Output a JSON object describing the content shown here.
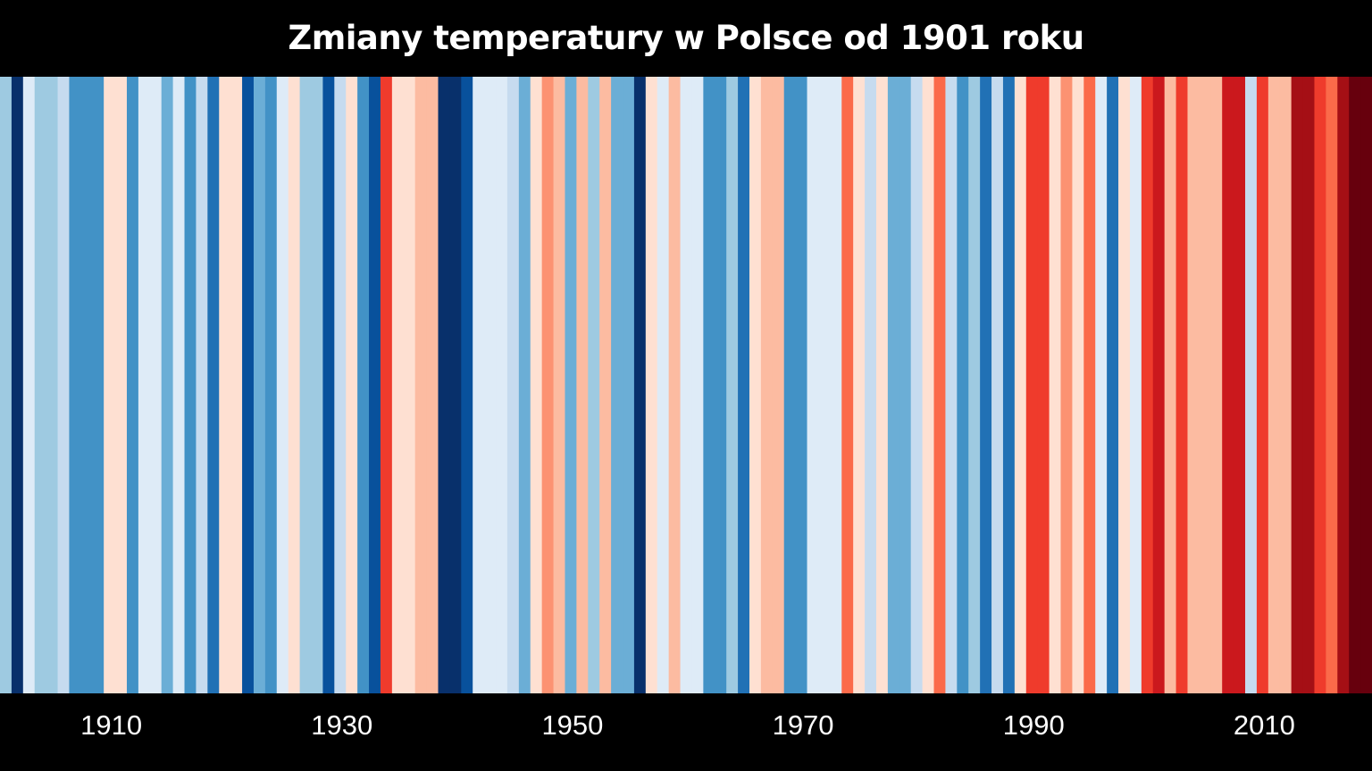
{
  "chart_data": {
    "type": "heatmap",
    "title": "Zmiany temperatury w Polsce od 1901 roku",
    "x_start_year": 1901,
    "x_end_year": 2019,
    "x_ticks": [
      "1910",
      "1930",
      "1950",
      "1970",
      "1990",
      "2010"
    ],
    "x_tick_years": [
      1910,
      1930,
      1950,
      1970,
      1990,
      2010
    ],
    "color_scale": [
      "#08306b",
      "#08519c",
      "#2171b5",
      "#4292c6",
      "#6baed6",
      "#9ecae1",
      "#c6dbef",
      "#deebf7",
      "#fee0d2",
      "#fcbba1",
      "#fc9272",
      "#fb6a4a",
      "#ef3b2c",
      "#cb181d",
      "#a50f15",
      "#67000d"
    ],
    "years": [
      1901,
      1902,
      1903,
      1904,
      1905,
      1906,
      1907,
      1908,
      1909,
      1910,
      1911,
      1912,
      1913,
      1914,
      1915,
      1916,
      1917,
      1918,
      1919,
      1920,
      1921,
      1922,
      1923,
      1924,
      1925,
      1926,
      1927,
      1928,
      1929,
      1930,
      1931,
      1932,
      1933,
      1934,
      1935,
      1936,
      1937,
      1938,
      1939,
      1940,
      1941,
      1942,
      1943,
      1944,
      1945,
      1946,
      1947,
      1948,
      1949,
      1950,
      1951,
      1952,
      1953,
      1954,
      1955,
      1956,
      1957,
      1958,
      1959,
      1960,
      1961,
      1962,
      1963,
      1964,
      1965,
      1966,
      1967,
      1968,
      1969,
      1970,
      1971,
      1972,
      1973,
      1974,
      1975,
      1976,
      1977,
      1978,
      1979,
      1980,
      1981,
      1982,
      1983,
      1984,
      1985,
      1986,
      1987,
      1988,
      1989,
      1990,
      1991,
      1992,
      1993,
      1994,
      1995,
      1996,
      1997,
      1998,
      1999,
      2000,
      2001,
      2002,
      2003,
      2004,
      2005,
      2006,
      2007,
      2008,
      2009,
      2010,
      2011,
      2012,
      2013,
      2014,
      2015,
      2016,
      2017,
      2018,
      2019
    ],
    "colors": [
      "#9ecae1",
      "#08306b",
      "#deebf7",
      "#9ecae1",
      "#9ecae1",
      "#c6dbef",
      "#4292c6",
      "#4292c6",
      "#4292c6",
      "#fee0d2",
      "#fee0d2",
      "#4292c6",
      "#deebf7",
      "#deebf7",
      "#6baed6",
      "#deebf7",
      "#4292c6",
      "#c6dbef",
      "#2171b5",
      "#fee0d2",
      "#fee0d2",
      "#08519c",
      "#6baed6",
      "#4292c6",
      "#deebf7",
      "#fee0d2",
      "#9ecae1",
      "#9ecae1",
      "#08519c",
      "#c6dbef",
      "#fee0d2",
      "#4292c6",
      "#08519c",
      "#ef3b2c",
      "#fee0d2",
      "#fee0d2",
      "#fcbba1",
      "#fcbba1",
      "#08306b",
      "#08306b",
      "#08519c",
      "#deebf7",
      "#deebf7",
      "#deebf7",
      "#c6dbef",
      "#6baed6",
      "#fee0d2",
      "#fc9272",
      "#fcbba1",
      "#6baed6",
      "#fcbba1",
      "#9ecae1",
      "#fcbba1",
      "#6baed6",
      "#6baed6",
      "#08306b",
      "#fee0d2",
      "#deebf7",
      "#fcbba1",
      "#deebf7",
      "#deebf7",
      "#4292c6",
      "#4292c6",
      "#9ecae1",
      "#2171b5",
      "#fee0d2",
      "#fcbba1",
      "#fcbba1",
      "#4292c6",
      "#4292c6",
      "#deebf7",
      "#deebf7",
      "#deebf7",
      "#fb6a4a",
      "#fee0d2",
      "#c6dbef",
      "#fee0d2",
      "#6baed6",
      "#6baed6",
      "#c6dbef",
      "#fee0d2",
      "#fb6a4a",
      "#c6dbef",
      "#4292c6",
      "#9ecae1",
      "#2171b5",
      "#c6dbef",
      "#2171b5",
      "#fee0d2",
      "#ef3b2c",
      "#ef3b2c",
      "#fee0d2",
      "#fc9272",
      "#fee0d2",
      "#fb6a4a",
      "#deebf7",
      "#2171b5",
      "#fee0d2",
      "#deebf7",
      "#ef3b2c",
      "#cb181d",
      "#fcbba1",
      "#ef3b2c",
      "#fcbba1",
      "#fcbba1",
      "#fcbba1",
      "#cb181d",
      "#cb181d",
      "#c6dbef",
      "#ef3b2c",
      "#fcbba1",
      "#fcbba1",
      "#a50f15",
      "#a50f15",
      "#ef3b2c",
      "#fb6a4a",
      "#a50f15",
      "#67000d",
      "#67000d"
    ]
  }
}
